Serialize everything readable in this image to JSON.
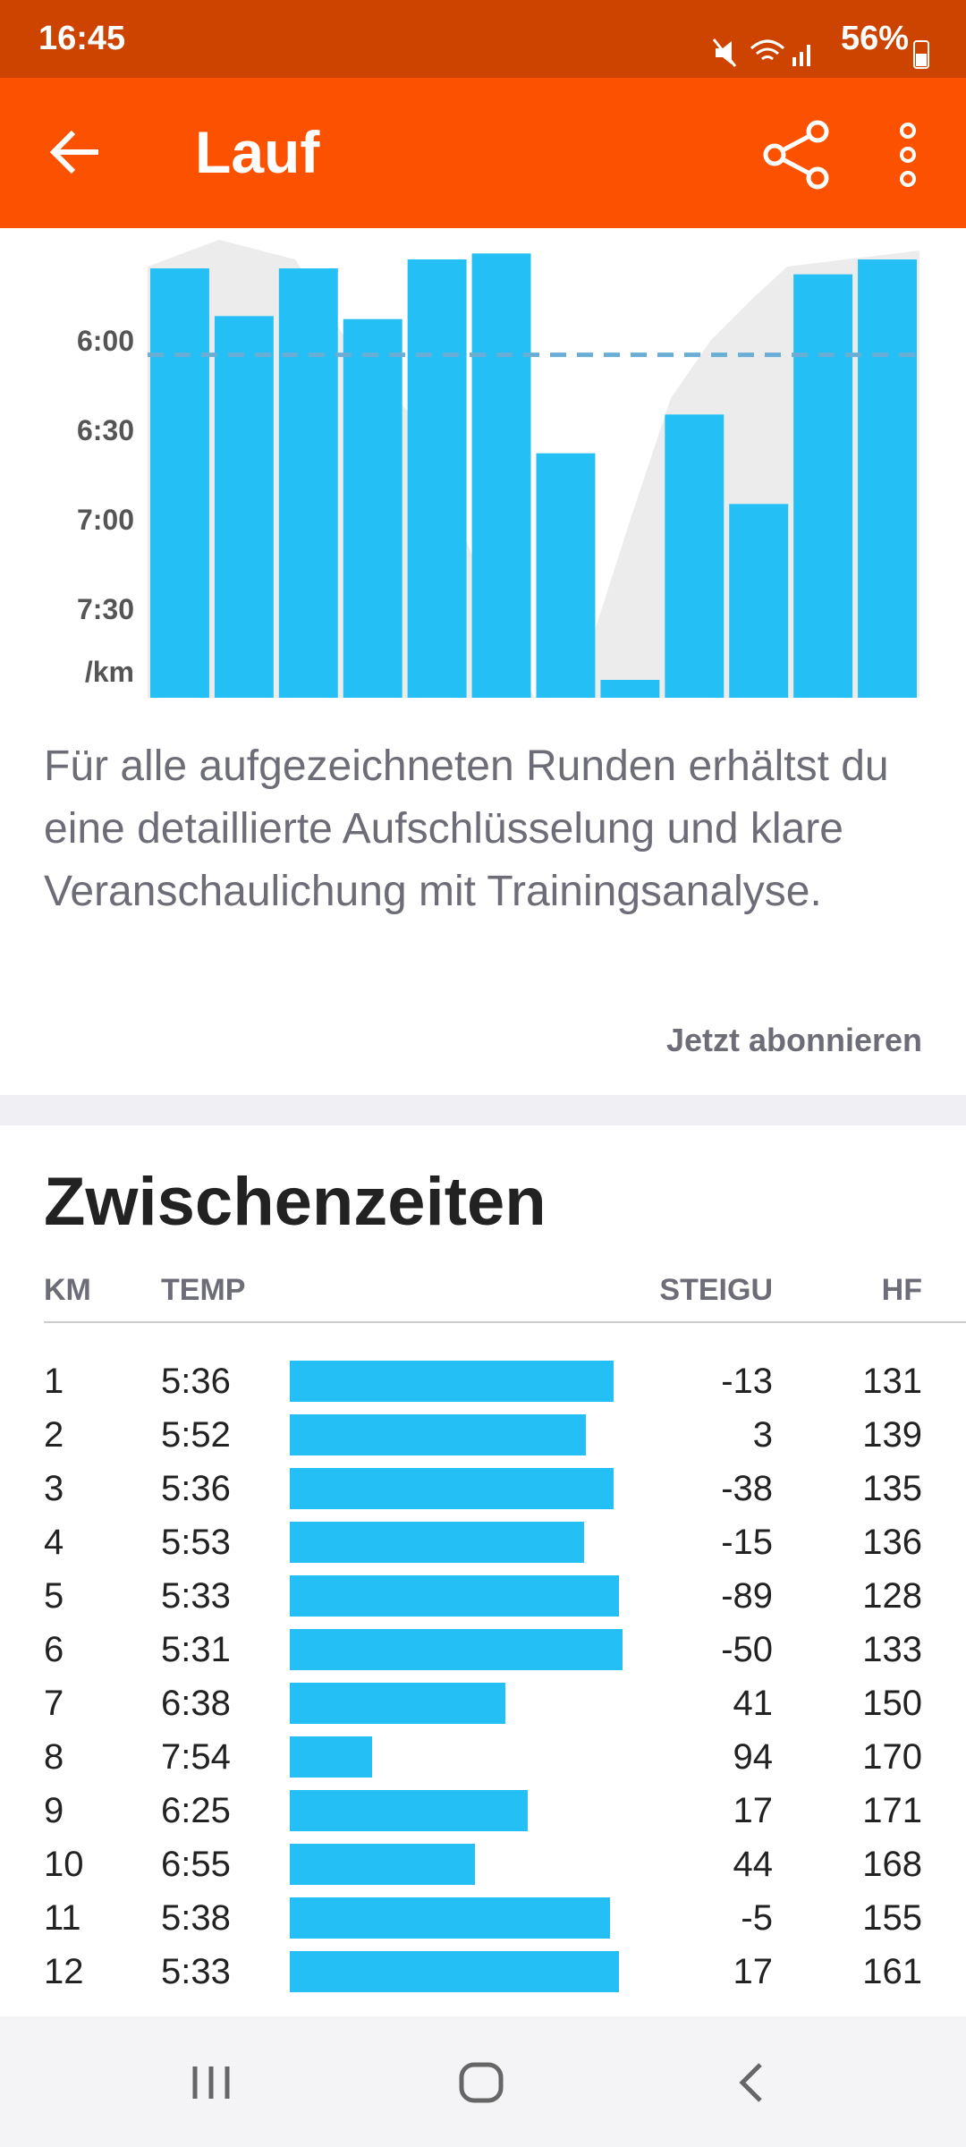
{
  "status_bar": {
    "time": "16:45",
    "battery": "56%"
  },
  "app_bar": {
    "title": "Lauf"
  },
  "chart": {
    "type": "bar",
    "ylim": [
      330,
      480
    ],
    "yticks": [
      {
        "value": 360,
        "label": "6:00"
      },
      {
        "value": 390,
        "label": "6:30"
      },
      {
        "value": 420,
        "label": "7:00"
      },
      {
        "value": 450,
        "label": "7:30"
      }
    ],
    "y_unit": "/km",
    "color": "#23bff5",
    "average_pace": 365,
    "average_color": "#6aaed6"
  },
  "description": "Für alle aufgezeichneten Runden erhältst du eine detaillierte Aufschlüsselung und klare Veranschaulichung mit Trainingsanalyse.",
  "subscribe_link": "Jetzt abonnieren",
  "splits": {
    "title": "Zwischenzeiten",
    "columns": [
      "KM",
      "TEMP",
      "STEIGU",
      "HF"
    ],
    "xlim": [
      521,
      331
    ],
    "rows": [
      {
        "km": 1,
        "pace": {
          "value": 336,
          "label": "5:36"
        },
        "elevation": -13,
        "hr": 131
      },
      {
        "km": 2,
        "pace": {
          "value": 352,
          "label": "5:52"
        },
        "elevation": 3,
        "hr": 139
      },
      {
        "km": 3,
        "pace": {
          "value": 336,
          "label": "5:36"
        },
        "elevation": -38,
        "hr": 135
      },
      {
        "km": 4,
        "pace": {
          "value": 353,
          "label": "5:53"
        },
        "elevation": -15,
        "hr": 136
      },
      {
        "km": 5,
        "pace": {
          "value": 333,
          "label": "5:33"
        },
        "elevation": -89,
        "hr": 128
      },
      {
        "km": 6,
        "pace": {
          "value": 331,
          "label": "5:31"
        },
        "elevation": -50,
        "hr": 133
      },
      {
        "km": 7,
        "pace": {
          "value": 398,
          "label": "6:38"
        },
        "elevation": 41,
        "hr": 150
      },
      {
        "km": 8,
        "pace": {
          "value": 474,
          "label": "7:54"
        },
        "elevation": 94,
        "hr": 170
      },
      {
        "km": 9,
        "pace": {
          "value": 385,
          "label": "6:25"
        },
        "elevation": 17,
        "hr": 171
      },
      {
        "km": 10,
        "pace": {
          "value": 415,
          "label": "6:55"
        },
        "elevation": 44,
        "hr": 168
      },
      {
        "km": 11,
        "pace": {
          "value": 338,
          "label": "5:38"
        },
        "elevation": -5,
        "hr": 155
      },
      {
        "km": 12,
        "pace": {
          "value": 333,
          "label": "5:33"
        },
        "elevation": 17,
        "hr": 161
      }
    ]
  }
}
